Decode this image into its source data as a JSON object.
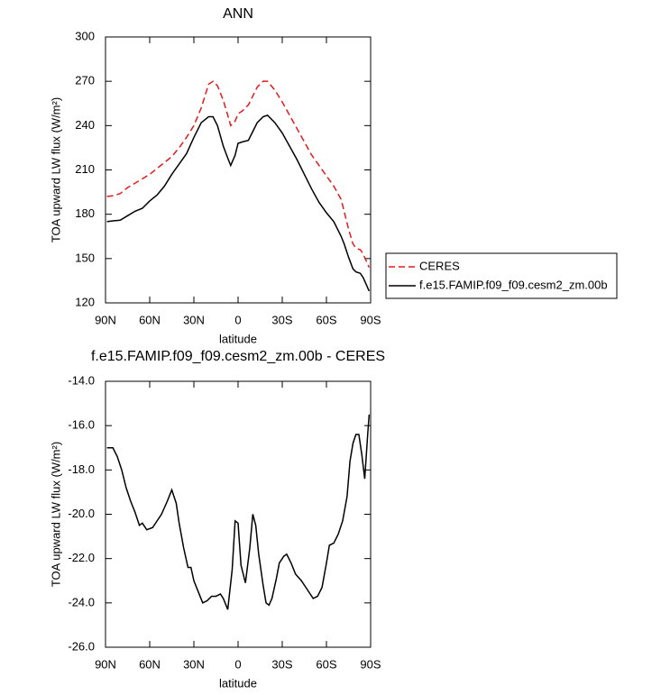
{
  "chart_data": [
    {
      "type": "line",
      "title": "ANN",
      "xlabel": "latitude",
      "ylabel": "TOA upward LW flux (W/m²)",
      "x": [
        89,
        85,
        80,
        75,
        70,
        65,
        60,
        55,
        50,
        45,
        40,
        35,
        30,
        25,
        20,
        17,
        14,
        10,
        7,
        5,
        2,
        0,
        -3,
        -7,
        -10,
        -13,
        -17,
        -20,
        -25,
        -30,
        -35,
        -40,
        -45,
        -50,
        -55,
        -60,
        -65,
        -70,
        -72,
        -75,
        -78,
        -80,
        -83,
        -85,
        -89
      ],
      "series": [
        {
          "name": "CERES",
          "color": "#e41a1c",
          "dash": true,
          "values": [
            192,
            192.5,
            194,
            198,
            201,
            204,
            207,
            211,
            215,
            219,
            225,
            232,
            240,
            252,
            268,
            270,
            267,
            257,
            247,
            240,
            243,
            248,
            250,
            254,
            260,
            266,
            270,
            270,
            264,
            256,
            247,
            238,
            229,
            220,
            213,
            206,
            199,
            190,
            182,
            170,
            160,
            157,
            156,
            153,
            144
          ]
        },
        {
          "name": "f.e15.FAMIP.f09_f09.cesm2_zm.00b",
          "color": "#000000",
          "dash": false,
          "values": [
            175,
            175.5,
            176,
            179,
            182,
            184,
            189,
            193,
            199,
            207,
            214,
            221,
            232,
            242,
            246,
            246,
            240,
            226,
            218,
            213,
            220,
            228,
            229,
            230,
            236,
            242,
            246,
            247,
            242,
            235,
            226,
            217,
            207,
            197,
            188,
            181,
            175,
            165,
            160,
            151,
            143,
            141,
            140,
            137,
            128
          ]
        }
      ],
      "xlim": [
        90,
        -90
      ],
      "xticks": [
        {
          "value": 90,
          "label": "90N"
        },
        {
          "value": 60,
          "label": "60N"
        },
        {
          "value": 30,
          "label": "30N"
        },
        0,
        {
          "value": -30,
          "label": "30S"
        },
        {
          "value": -60,
          "label": "60S"
        },
        {
          "value": -90,
          "label": "90S"
        }
      ],
      "ylim": [
        120,
        300
      ],
      "yticks": [
        120,
        150,
        180,
        210,
        240,
        270,
        300
      ],
      "legend": "outside-right"
    },
    {
      "type": "line",
      "title": "f.e15.FAMIP.f09_f09.cesm2_zm.00b - CERES",
      "xlabel": "latitude",
      "ylabel": "TOA upward LW flux (W/m²)",
      "x": [
        89,
        85,
        82,
        79,
        76,
        73,
        70,
        67,
        65,
        62,
        58,
        55,
        52,
        48,
        45,
        42,
        40,
        37,
        34,
        32,
        30,
        27,
        24,
        21,
        18,
        15,
        12,
        10,
        7,
        4,
        2,
        0,
        -2,
        -5,
        -8,
        -10,
        -12,
        -14,
        -17,
        -19,
        -21,
        -23,
        -26,
        -28,
        -31,
        -33,
        -36,
        -39,
        -43,
        -46,
        -49,
        -51,
        -54,
        -57,
        -60,
        -62,
        -65,
        -68,
        -71,
        -74,
        -76,
        -78,
        -80,
        -82,
        -84,
        -86,
        -88,
        -89
      ],
      "values": [
        -17.0,
        -17.0,
        -17.4,
        -18.0,
        -18.8,
        -19.4,
        -19.9,
        -20.5,
        -20.4,
        -20.7,
        -20.6,
        -20.3,
        -20.0,
        -19.4,
        -18.9,
        -19.5,
        -20.4,
        -21.5,
        -22.4,
        -22.4,
        -23.0,
        -23.5,
        -24.0,
        -23.9,
        -23.7,
        -23.7,
        -23.6,
        -23.8,
        -24.3,
        -22.5,
        -20.3,
        -20.4,
        -22.3,
        -23.1,
        -21.5,
        -20.0,
        -20.5,
        -21.8,
        -23.2,
        -24.0,
        -24.1,
        -23.8,
        -22.9,
        -22.2,
        -21.9,
        -21.8,
        -22.2,
        -22.7,
        -23.0,
        -23.3,
        -23.6,
        -23.8,
        -23.7,
        -23.3,
        -22.2,
        -21.4,
        -21.3,
        -20.9,
        -20.3,
        -19.2,
        -17.6,
        -16.8,
        -16.4,
        -16.4,
        -17.3,
        -18.4,
        -16.4,
        -15.5
      ],
      "color": "#000000",
      "xlim": [
        90,
        -90
      ],
      "xticks": [
        {
          "value": 90,
          "label": "90N"
        },
        {
          "value": 60,
          "label": "60N"
        },
        {
          "value": 30,
          "label": "30N"
        },
        0,
        {
          "value": -30,
          "label": "30S"
        },
        {
          "value": -60,
          "label": "60S"
        },
        {
          "value": -90,
          "label": "90S"
        }
      ],
      "ylim": [
        -26,
        -14
      ],
      "yticks": [
        {
          "value": -26,
          "label": "-26.0"
        },
        {
          "value": -24,
          "label": "-24.0"
        },
        {
          "value": -22,
          "label": "-22.0"
        },
        {
          "value": -20,
          "label": "-20.0"
        },
        {
          "value": -18,
          "label": "-18.0"
        },
        {
          "value": -16,
          "label": "-16.0"
        },
        {
          "value": -14,
          "label": "-14.0"
        }
      ]
    }
  ]
}
